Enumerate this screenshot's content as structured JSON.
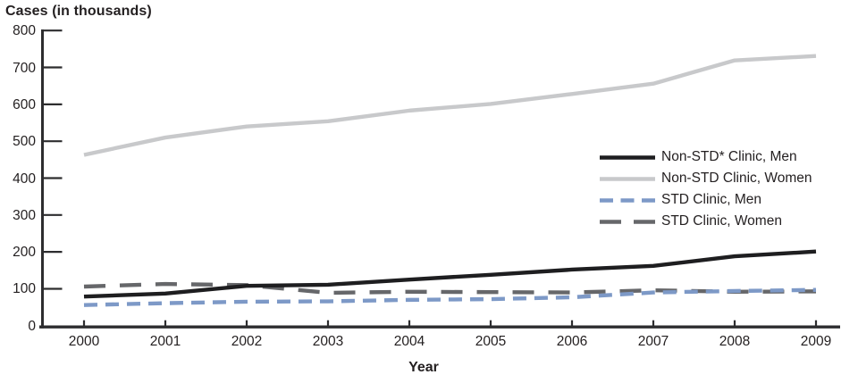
{
  "chart_data": {
    "type": "line",
    "title": "Cases (in thousands)",
    "xlabel": "Year",
    "ylabel": "Cases (in thousands)",
    "x": [
      2000,
      2001,
      2002,
      2003,
      2004,
      2005,
      2006,
      2007,
      2008,
      2009
    ],
    "ylim": [
      0,
      800
    ],
    "yticks": [
      0,
      100,
      200,
      300,
      400,
      500,
      600,
      700,
      800
    ],
    "grid": false,
    "legend_position": "middle-right",
    "axis_color": "#2d2d2f",
    "text_color": "#231f20",
    "series": [
      {
        "name": "Non-STD* Clinic, Men",
        "color": "#1e1e20",
        "line_style": "solid",
        "values": [
          79,
          87,
          108,
          111,
          125,
          138,
          152,
          162,
          188,
          201
        ]
      },
      {
        "name": "Non-STD Clinic, Women",
        "color": "#c8c9cb",
        "line_style": "solid",
        "values": [
          463,
          510,
          540,
          554,
          583,
          601,
          628,
          656,
          719,
          731
        ]
      },
      {
        "name": "STD Clinic, Men",
        "color": "#7d99c7",
        "line_style": "dashed-short",
        "values": [
          56,
          61,
          65,
          66,
          70,
          72,
          77,
          90,
          94,
          97
        ]
      },
      {
        "name": "STD Clinic, Women",
        "color": "#66676a",
        "line_style": "dashed-long",
        "values": [
          106,
          113,
          110,
          89,
          92,
          91,
          90,
          96,
          92,
          93
        ]
      }
    ]
  }
}
